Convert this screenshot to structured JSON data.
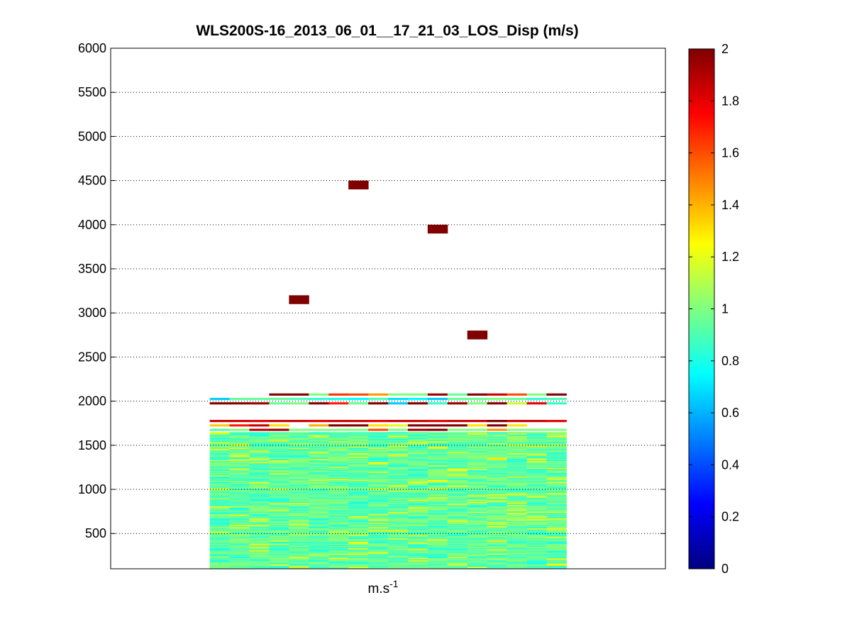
{
  "chart_data": {
    "type": "heatmap",
    "title": "WLS200S-16_2013_06_01__17_21_03_LOS_Disp (m/s)",
    "xlabel": "m.s",
    "xlabel_superscript": "-1",
    "ylabel": "",
    "ylim": [
      100,
      6000
    ],
    "yticks": [
      500,
      1000,
      1500,
      2000,
      2500,
      3000,
      3500,
      4000,
      4500,
      5000,
      5500,
      6000
    ],
    "grid": "horizontal dotted",
    "colormap": "jet",
    "colorbar": {
      "range": [
        0,
        2
      ],
      "ticks": [
        "0",
        "0.2",
        "0.4",
        "0.6",
        "0.8",
        "1",
        "1.2",
        "1.4",
        "1.6",
        "1.8",
        "2"
      ],
      "placement": "right"
    },
    "columns": 18,
    "column_range": [
      5,
      23
    ],
    "row_height": 25,
    "cells": [
      {
        "c": 5,
        "y": 2025,
        "v": 0.65
      },
      {
        "c": 6,
        "y": 2025,
        "v": 0.95
      },
      {
        "c": 7,
        "y": 2025,
        "v": 0.95
      },
      {
        "c": 8,
        "y": 2075,
        "v": 2.0
      },
      {
        "c": 9,
        "y": 2075,
        "v": 2.0
      },
      {
        "c": 10,
        "y": 2075,
        "v": 1.0
      },
      {
        "c": 11,
        "y": 2075,
        "v": 1.65
      },
      {
        "c": 12,
        "y": 2075,
        "v": 1.6
      },
      {
        "c": 13,
        "y": 2075,
        "v": 1.45
      },
      {
        "c": 14,
        "y": 2075,
        "v": 1.0
      },
      {
        "c": 15,
        "y": 2075,
        "v": 1.0
      },
      {
        "c": 16,
        "y": 2075,
        "v": 1.95
      },
      {
        "c": 17,
        "y": 2075,
        "v": 0.95
      },
      {
        "c": 18,
        "y": 2075,
        "v": 2.0
      },
      {
        "c": 19,
        "y": 2075,
        "v": 1.85
      },
      {
        "c": 20,
        "y": 2075,
        "v": 1.6
      },
      {
        "c": 21,
        "y": 2075,
        "v": 1.0
      },
      {
        "c": 22,
        "y": 2075,
        "v": 2.0
      },
      {
        "c": 8,
        "y": 2025,
        "v": 0.95
      },
      {
        "c": 9,
        "y": 2025,
        "v": 0.9
      },
      {
        "c": 10,
        "y": 2025,
        "v": 0.85
      },
      {
        "c": 11,
        "y": 2025,
        "v": 0.8
      },
      {
        "c": 12,
        "y": 2025,
        "v": 0.75
      },
      {
        "c": 13,
        "y": 2025,
        "v": 0.9
      },
      {
        "c": 14,
        "y": 2025,
        "v": 0.7
      },
      {
        "c": 15,
        "y": 2025,
        "v": 0.75
      },
      {
        "c": 16,
        "y": 2025,
        "v": 0.65
      },
      {
        "c": 17,
        "y": 2025,
        "v": 0.95
      },
      {
        "c": 18,
        "y": 2025,
        "v": 0.95
      },
      {
        "c": 19,
        "y": 2025,
        "v": 1.0
      },
      {
        "c": 20,
        "y": 2025,
        "v": 0.95
      },
      {
        "c": 21,
        "y": 2025,
        "v": 0.85
      },
      {
        "c": 22,
        "y": 2025,
        "v": 0.9
      },
      {
        "c": 5,
        "y": 1975,
        "v": 2.0
      },
      {
        "c": 6,
        "y": 1975,
        "v": 2.0
      },
      {
        "c": 7,
        "y": 1975,
        "v": 1.95
      },
      {
        "c": 8,
        "y": 1975,
        "v": 0.95
      },
      {
        "c": 9,
        "y": 1975,
        "v": 1.0
      },
      {
        "c": 10,
        "y": 1975,
        "v": 2.0
      },
      {
        "c": 11,
        "y": 1975,
        "v": 1.7
      },
      {
        "c": 12,
        "y": 1975,
        "v": 0.95
      },
      {
        "c": 13,
        "y": 1975,
        "v": 2.0
      },
      {
        "c": 14,
        "y": 1975,
        "v": 0.65
      },
      {
        "c": 15,
        "y": 1975,
        "v": 2.0
      },
      {
        "c": 16,
        "y": 1975,
        "v": 0.85
      },
      {
        "c": 17,
        "y": 1975,
        "v": 1.95
      },
      {
        "c": 18,
        "y": 1975,
        "v": 1.0
      },
      {
        "c": 19,
        "y": 1975,
        "v": 2.0
      },
      {
        "c": 20,
        "y": 1975,
        "v": 1.15
      },
      {
        "c": 21,
        "y": 1975,
        "v": 1.8
      },
      {
        "c": 22,
        "y": 1975,
        "v": 0.85
      },
      {
        "c": 5,
        "y": 1775,
        "v": 1.85
      },
      {
        "c": 6,
        "y": 1775,
        "v": 1.85
      },
      {
        "c": 7,
        "y": 1775,
        "v": 1.8
      },
      {
        "c": 8,
        "y": 1775,
        "v": 1.85
      },
      {
        "c": 9,
        "y": 1775,
        "v": 1.85
      },
      {
        "c": 10,
        "y": 1775,
        "v": 1.8
      },
      {
        "c": 11,
        "y": 1775,
        "v": 1.85
      },
      {
        "c": 12,
        "y": 1775,
        "v": 1.85
      },
      {
        "c": 13,
        "y": 1775,
        "v": 1.8
      },
      {
        "c": 14,
        "y": 1775,
        "v": 1.85
      },
      {
        "c": 15,
        "y": 1775,
        "v": 1.85
      },
      {
        "c": 16,
        "y": 1775,
        "v": 1.8
      },
      {
        "c": 17,
        "y": 1775,
        "v": 1.85
      },
      {
        "c": 18,
        "y": 1775,
        "v": 1.85
      },
      {
        "c": 19,
        "y": 1775,
        "v": 2.0
      },
      {
        "c": 20,
        "y": 1775,
        "v": 1.85
      },
      {
        "c": 21,
        "y": 1775,
        "v": 1.85
      },
      {
        "c": 22,
        "y": 1775,
        "v": 1.8
      },
      {
        "c": 5,
        "y": 1725,
        "v": 1.35
      },
      {
        "c": 6,
        "y": 1725,
        "v": 1.7
      },
      {
        "c": 7,
        "y": 1725,
        "v": 1.85
      },
      {
        "c": 8,
        "y": 1725,
        "v": 1.3
      },
      {
        "c": 10,
        "y": 1725,
        "v": 1.4
      },
      {
        "c": 11,
        "y": 1725,
        "v": 2.0
      },
      {
        "c": 12,
        "y": 1725,
        "v": 2.0
      },
      {
        "c": 13,
        "y": 1725,
        "v": 1.3
      },
      {
        "c": 14,
        "y": 1725,
        "v": 1.2
      },
      {
        "c": 15,
        "y": 1725,
        "v": 2.0
      },
      {
        "c": 16,
        "y": 1725,
        "v": 2.0
      },
      {
        "c": 17,
        "y": 1725,
        "v": 2.0
      },
      {
        "c": 18,
        "y": 1725,
        "v": 1.3
      },
      {
        "c": 19,
        "y": 1725,
        "v": 2.0
      },
      {
        "c": 20,
        "y": 1725,
        "v": 1.3
      },
      {
        "c": 5,
        "y": 1675,
        "v": 0.9
      },
      {
        "c": 6,
        "y": 1675,
        "v": 1.0
      },
      {
        "c": 7,
        "y": 1675,
        "v": 1.9
      },
      {
        "c": 8,
        "y": 1675,
        "v": 1.95
      },
      {
        "c": 9,
        "y": 1675,
        "v": 1.0
      },
      {
        "c": 10,
        "y": 1675,
        "v": 1.0
      },
      {
        "c": 11,
        "y": 1675,
        "v": 1.0
      },
      {
        "c": 12,
        "y": 1675,
        "v": 1.0
      },
      {
        "c": 13,
        "y": 1675,
        "v": 1.6
      },
      {
        "c": 14,
        "y": 1675,
        "v": 1.0
      },
      {
        "c": 15,
        "y": 1675,
        "v": 1.95
      },
      {
        "c": 16,
        "y": 1675,
        "v": 2.0
      },
      {
        "c": 17,
        "y": 1675,
        "v": 1.0
      },
      {
        "c": 18,
        "y": 1675,
        "v": 1.0
      },
      {
        "c": 19,
        "y": 1675,
        "v": 1.45
      },
      {
        "c": 20,
        "y": 1675,
        "v": 1.0
      },
      {
        "c": 21,
        "y": 1675,
        "v": 1.0
      },
      {
        "c": 22,
        "y": 1675,
        "v": 1.0
      },
      {
        "c": 9,
        "y": 3150,
        "v": 2.0
      },
      {
        "c": 12,
        "y": 4450,
        "v": 2.0
      },
      {
        "c": 16,
        "y": 3950,
        "v": 2.0
      },
      {
        "c": 18,
        "y": 2750,
        "v": 2.0
      }
    ],
    "dense_block": {
      "y_range": [
        100,
        1650
      ],
      "column_range": [
        5,
        23
      ],
      "typical_value": 0.95,
      "value_range": [
        0.8,
        1.3
      ]
    }
  }
}
